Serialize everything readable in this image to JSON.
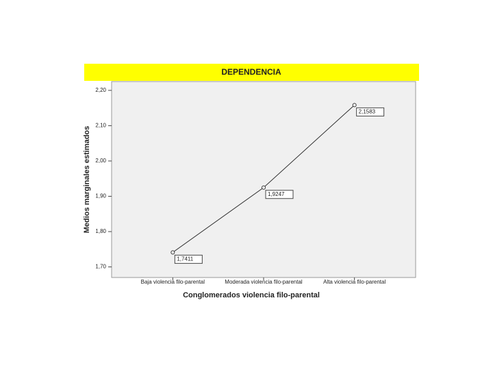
{
  "chart_data": {
    "type": "line",
    "title": "DEPENDENCIA",
    "x_label": "Conglomerados violencia filo-parental",
    "y_label": "Medios marginales estimados",
    "categories": [
      "Baja violencia filo-parental",
      "Moderada violencia filo-parental",
      "Alta violencia filo-parental"
    ],
    "values": [
      1.7411,
      1.9247,
      2.1583
    ],
    "value_labels": [
      "1,7411",
      "1,9247",
      "2,1583"
    ],
    "color": "#333333",
    "ylim": [
      1.67,
      2.225
    ],
    "yticks": [
      {
        "value": 1.7,
        "label": "1,70"
      },
      {
        "value": 1.8,
        "label": "1,80"
      },
      {
        "value": 1.9,
        "label": "1,90"
      },
      {
        "value": 2.0,
        "label": "2,00"
      },
      {
        "value": 2.1,
        "label": "2,10"
      },
      {
        "value": 2.2,
        "label": "2,20"
      }
    ]
  }
}
